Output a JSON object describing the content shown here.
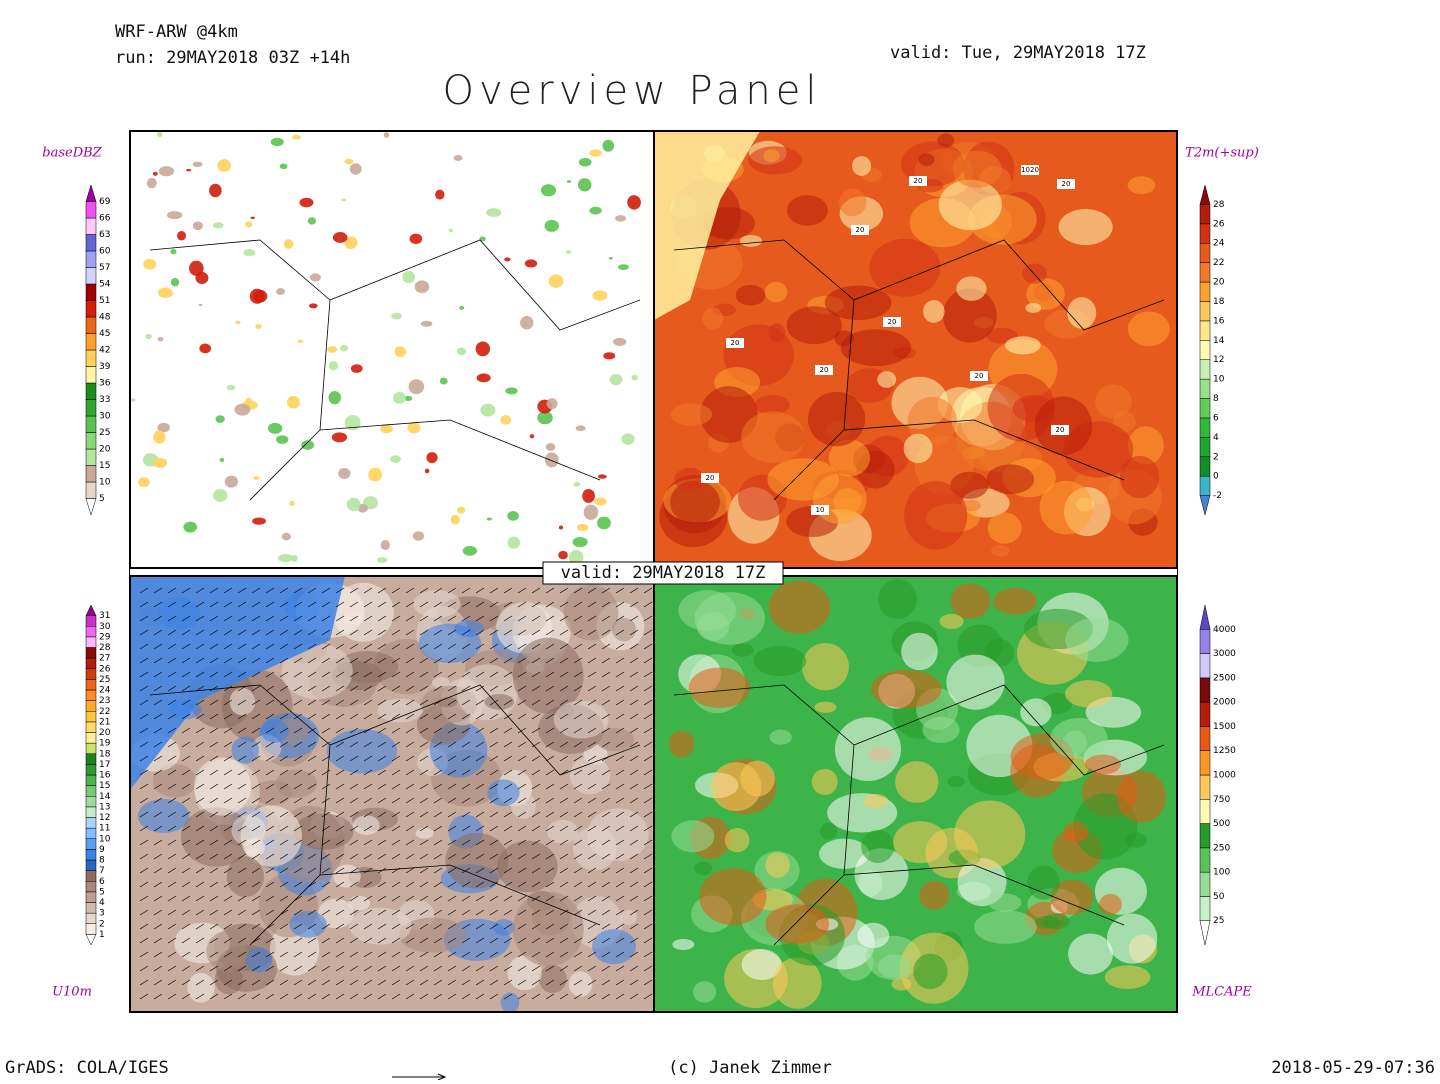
{
  "header": {
    "model": "WRF-ARW @4km",
    "run": "run: 29MAY2018 03Z +14h",
    "valid": "valid: Tue, 29MAY2018 17Z",
    "title": "Overview Panel",
    "center_valid": "valid: 29MAY2018 17Z"
  },
  "panels": [
    {
      "label": "baseDBZ",
      "ticks": [
        5,
        10,
        15,
        20,
        25,
        30,
        33,
        36,
        39,
        42,
        45,
        48,
        51,
        54,
        57,
        60,
        63,
        66,
        69
      ],
      "colors": [
        "#ffffff",
        "#e6d6cc",
        "#c8aa9a",
        "#b4e6a0",
        "#8cd778",
        "#5ac350",
        "#32a532",
        "#1e8c1e",
        "#fff5aa",
        "#ffd25a",
        "#ffa028",
        "#f06414",
        "#d21e0a",
        "#a00000",
        "#d2d2ff",
        "#a0a0f0",
        "#6464d2",
        "#ffc8ff",
        "#f050f0",
        "#a000a0"
      ]
    },
    {
      "label": "T2m(+sup)",
      "ticks": [
        -2,
        0,
        2,
        4,
        6,
        8,
        10,
        12,
        14,
        16,
        18,
        20,
        22,
        24,
        26,
        28
      ],
      "colors": [
        "#4682d2",
        "#3cb4c8",
        "#148c28",
        "#1ea532",
        "#32b93c",
        "#64cd5a",
        "#96e18c",
        "#c8f0b4",
        "#fffab4",
        "#ffe68c",
        "#ffc85a",
        "#ffa032",
        "#f07828",
        "#e65a1e",
        "#d23214",
        "#b41e0a",
        "#8c0a0a"
      ]
    },
    {
      "label": "U10m",
      "ticks": [
        1,
        2,
        3,
        4,
        5,
        6,
        7,
        8,
        9,
        10,
        11,
        12,
        13,
        14,
        15,
        16,
        17,
        18,
        19,
        20,
        21,
        22,
        23,
        24,
        25,
        26,
        27,
        28,
        29,
        30,
        31
      ],
      "colors": [
        "#ffffff",
        "#f5ece6",
        "#e6d6cc",
        "#d2bcb0",
        "#bea092",
        "#a8887a",
        "#8c6e60",
        "#2864c8",
        "#3c82e6",
        "#5aa0f0",
        "#82beff",
        "#aad2ff",
        "#c8ebc8",
        "#a0dca0",
        "#78c878",
        "#50b450",
        "#2d9b2d",
        "#1e821e",
        "#c8e664",
        "#fff096",
        "#ffdc64",
        "#ffc83c",
        "#ffaa28",
        "#ff8c1e",
        "#f06414",
        "#d23c0a",
        "#b41e0a",
        "#8c0a0a",
        "#ffb4ff",
        "#f064f0",
        "#c832c8",
        "#960096"
      ]
    },
    {
      "label": "MLCAPE",
      "ticks": [
        25,
        50,
        100,
        250,
        500,
        750,
        1000,
        1250,
        1500,
        2000,
        2500,
        3000,
        4000
      ],
      "colors": [
        "#ffffff",
        "#c8f0c8",
        "#96dc96",
        "#5ac35a",
        "#289b28",
        "#fffab4",
        "#ffc85a",
        "#ff9628",
        "#e65a14",
        "#b41e0a",
        "#780a0a",
        "#d2c8ff",
        "#9682e6",
        "#5a46c8"
      ]
    }
  ],
  "map_labels": [
    "1020",
    "20",
    "20",
    "20",
    "20",
    "20",
    "20",
    "20",
    "10",
    "20",
    "20"
  ],
  "footer": {
    "left": "GrADS: COLA/IGES",
    "center": "(c) Janek Zimmer",
    "right": "2018-05-29-07:36"
  }
}
